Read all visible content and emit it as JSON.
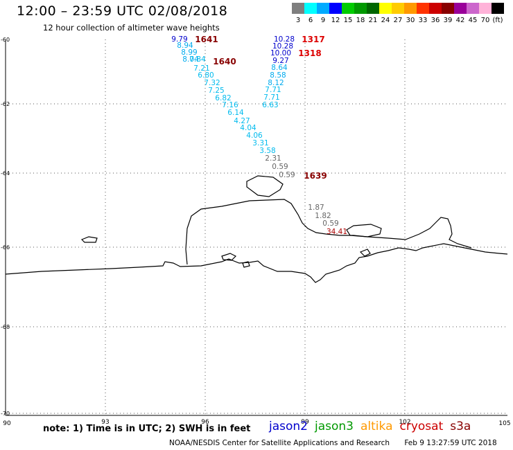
{
  "title": "12:00 – 23:59 UTC 02/08/2018",
  "subtitle": "12 hour collection of altimeter wave heights",
  "scale": {
    "labels": [
      "3",
      "6",
      "9",
      "12",
      "15",
      "18",
      "21",
      "24",
      "27",
      "30",
      "33",
      "36",
      "39",
      "42",
      "45",
      "70",
      "(ft)"
    ],
    "colors": [
      "#7f7f7f",
      "#00ffff",
      "#00aaff",
      "#0000ff",
      "#00cc00",
      "#009900",
      "#006600",
      "#ffff00",
      "#ffcc00",
      "#ff9900",
      "#ff3300",
      "#cc0000",
      "#880000",
      "#990099",
      "#cc66cc",
      "#ffb3d9",
      "#000000"
    ]
  },
  "note": "note:  1) Time is in UTC;  2) SWH is in feet",
  "satellites": [
    {
      "name": "jason2",
      "color": "#0000cc"
    },
    {
      "name": "jason3",
      "color": "#009900"
    },
    {
      "name": "altika",
      "color": "#ff9900"
    },
    {
      "name": "cryosat",
      "color": "#cc0000"
    },
    {
      "name": "s3a",
      "color": "#880000"
    }
  ],
  "footer": {
    "org": "NOAA/NESDIS Center for Satellite Applications and Research",
    "timestamp": "Feb  9 13:27:59 UTC 2018"
  },
  "axes": {
    "lon_ticks": [
      "90",
      "93",
      "96",
      "99",
      "102",
      "105"
    ],
    "lat_ticks": [
      "-60",
      "-62",
      "-64",
      "-66",
      "-68",
      "-70"
    ]
  },
  "track_a": {
    "obs": [
      {
        "v": "9.79",
        "c": "#0000cc"
      },
      {
        "v": "8.94",
        "c": "#00aaee"
      },
      {
        "v": "8.99",
        "c": "#00aaee"
      },
      {
        "v": "8.04",
        "c": "#00aaee"
      },
      {
        "v": "7.84",
        "c": "#00bbee"
      },
      {
        "v": "7.21",
        "c": "#00bbee"
      },
      {
        "v": "6.80",
        "c": "#00bbee"
      },
      {
        "v": "7.32",
        "c": "#00bbee"
      },
      {
        "v": "7.25",
        "c": "#00bbee"
      },
      {
        "v": "6.82",
        "c": "#00bbee"
      },
      {
        "v": "7.16",
        "c": "#00bbee"
      },
      {
        "v": "6.14",
        "c": "#00bbee"
      },
      {
        "v": "4.27",
        "c": "#00bbee"
      },
      {
        "v": "4.04",
        "c": "#00bbee"
      },
      {
        "v": "4.06",
        "c": "#00bbee"
      },
      {
        "v": "3.31",
        "c": "#00bbee"
      },
      {
        "v": "3.58",
        "c": "#00bbee"
      },
      {
        "v": "2.31",
        "c": "#666666"
      },
      {
        "v": "0.59",
        "c": "#666666"
      },
      {
        "v": "0.59",
        "c": "#666666"
      }
    ],
    "times": [
      "1641",
      "1640",
      "1639"
    ]
  },
  "track_b": {
    "obs": [
      {
        "v": "10.28",
        "c": "#0000cc"
      },
      {
        "v": "10.28",
        "c": "#0000cc"
      },
      {
        "v": "10.00",
        "c": "#0000cc"
      },
      {
        "v": "9.27",
        "c": "#0000cc"
      },
      {
        "v": "8.64",
        "c": "#00aaee"
      },
      {
        "v": "8.58",
        "c": "#00aaee"
      },
      {
        "v": "8.12",
        "c": "#00aaee"
      },
      {
        "v": "7.71",
        "c": "#00bbee"
      },
      {
        "v": "7.71",
        "c": "#00bbee"
      },
      {
        "v": "6.63",
        "c": "#00bbee"
      }
    ],
    "times": [
      "1317",
      "1318"
    ]
  },
  "track_c": {
    "obs": [
      {
        "v": "1.87",
        "c": "#666666"
      },
      {
        "v": "1.82",
        "c": "#666666"
      },
      {
        "v": "0.59",
        "c": "#666666"
      },
      {
        "v": "34.41",
        "c": "#aa0000"
      }
    ]
  }
}
